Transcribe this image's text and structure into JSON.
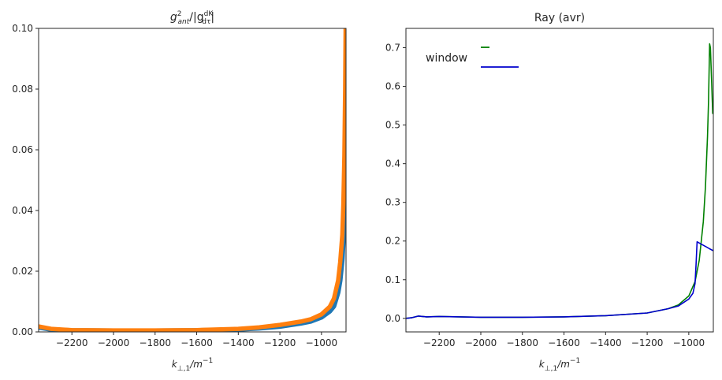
{
  "chart_data": [
    {
      "type": "line",
      "title": "g_ant^2/|g dK/dτ|",
      "title_parts": {
        "g1": "g",
        "sup": "2",
        "ant": "ant",
        "mid": "/|g",
        "num": "dK",
        "den": "dτ",
        "end": "|"
      },
      "xlabel": "k⊥,1/m⁻¹",
      "xlabel_parts": {
        "k": "k",
        "sub": "⊥,1",
        "mid": "/m",
        "sup": "−1"
      },
      "ylabel": "",
      "xlim": [
        -2360,
        -882
      ],
      "ylim": [
        0,
        0.1
      ],
      "grid": false,
      "x_ticks": [
        "−2200",
        "−2000",
        "−1800",
        "−1600",
        "−1400",
        "−1200",
        "−1000"
      ],
      "x_tick_values": [
        -2200,
        -2000,
        -1800,
        -1600,
        -1400,
        -1200,
        -1000
      ],
      "y_ticks": [
        "0.00",
        "0.02",
        "0.04",
        "0.06",
        "0.08",
        "0.10"
      ],
      "y_tick_values": [
        0,
        0.02,
        0.04,
        0.06,
        0.08,
        0.1
      ],
      "series": [
        {
          "color": "#1f77b4",
          "x": [
            -2360,
            -2300,
            -2200,
            -2000,
            -1800,
            -1600,
            -1400,
            -1300,
            -1200,
            -1100,
            -1050,
            -1000,
            -960,
            -940,
            -920,
            -910,
            -900,
            -895,
            -890,
            -886,
            -884
          ],
          "y": [
            0.0015,
            0.0008,
            0.0005,
            0.0004,
            0.0004,
            0.0005,
            0.0008,
            0.0012,
            0.0018,
            0.0028,
            0.0035,
            0.0048,
            0.0068,
            0.0085,
            0.013,
            0.017,
            0.024,
            0.03,
            0.042,
            0.053,
            0.06
          ]
        },
        {
          "color": "#ff7f0e",
          "x": [
            -2360,
            -2300,
            -2200,
            -2000,
            -1800,
            -1600,
            -1400,
            -1300,
            -1200,
            -1100,
            -1050,
            -1000,
            -960,
            -940,
            -920,
            -910,
            -900,
            -895,
            -890,
            -886,
            -884
          ],
          "y": [
            0.0018,
            0.001,
            0.0006,
            0.0005,
            0.0005,
            0.0006,
            0.001,
            0.0015,
            0.0023,
            0.0034,
            0.0042,
            0.0058,
            0.0083,
            0.011,
            0.017,
            0.023,
            0.032,
            0.042,
            0.058,
            0.08,
            0.1
          ]
        }
      ]
    },
    {
      "type": "line",
      "title": "Ray (avr)",
      "xlabel": "k⊥,1/m⁻¹",
      "xlabel_parts": {
        "k": "k",
        "sub": "⊥,1",
        "mid": "/m",
        "sup": "−1"
      },
      "ylabel": "",
      "xlim": [
        -2360,
        -882
      ],
      "ylim": [
        -0.035,
        0.75
      ],
      "grid": false,
      "legend_position": "top-left",
      "x_ticks": [
        "−2200",
        "−2000",
        "−1800",
        "−1600",
        "−1400",
        "−1200",
        "−1000"
      ],
      "x_tick_values": [
        -2200,
        -2000,
        -1800,
        -1600,
        -1400,
        -1200,
        -1000
      ],
      "y_ticks": [
        "0.0",
        "0.1",
        "0.2",
        "0.3",
        "0.4",
        "0.5",
        "0.6",
        "0.7"
      ],
      "y_tick_values": [
        0,
        0.1,
        0.2,
        0.3,
        0.4,
        0.5,
        0.6,
        0.7
      ],
      "legend": [
        {
          "label": "window",
          "color": "#008000"
        },
        {
          "label": "",
          "color": "#0000cd"
        }
      ],
      "series": [
        {
          "color": "#008000",
          "x": [
            -2360,
            -2330,
            -2300,
            -2260,
            -2200,
            -2000,
            -1800,
            -1600,
            -1400,
            -1200,
            -1100,
            -1050,
            -1000,
            -970,
            -950,
            -930,
            -920,
            -910,
            -905,
            -900,
            -896,
            -890,
            -885
          ],
          "y": [
            0.0,
            0.002,
            0.006,
            0.004,
            0.005,
            0.003,
            0.003,
            0.004,
            0.007,
            0.014,
            0.025,
            0.035,
            0.058,
            0.095,
            0.15,
            0.25,
            0.34,
            0.47,
            0.56,
            0.71,
            0.7,
            0.61,
            0.53
          ]
        },
        {
          "color": "#0000cd",
          "x": [
            -2360,
            -2330,
            -2300,
            -2260,
            -2200,
            -2000,
            -1800,
            -1600,
            -1400,
            -1200,
            -1100,
            -1050,
            -1000,
            -980,
            -970,
            -965,
            -960,
            -940,
            -920,
            -900,
            -882
          ],
          "y": [
            0.0,
            0.002,
            0.006,
            0.004,
            0.005,
            0.003,
            0.003,
            0.004,
            0.007,
            0.014,
            0.025,
            0.032,
            0.05,
            0.065,
            0.09,
            0.14,
            0.198,
            0.192,
            0.186,
            0.18,
            0.175
          ]
        }
      ]
    }
  ]
}
